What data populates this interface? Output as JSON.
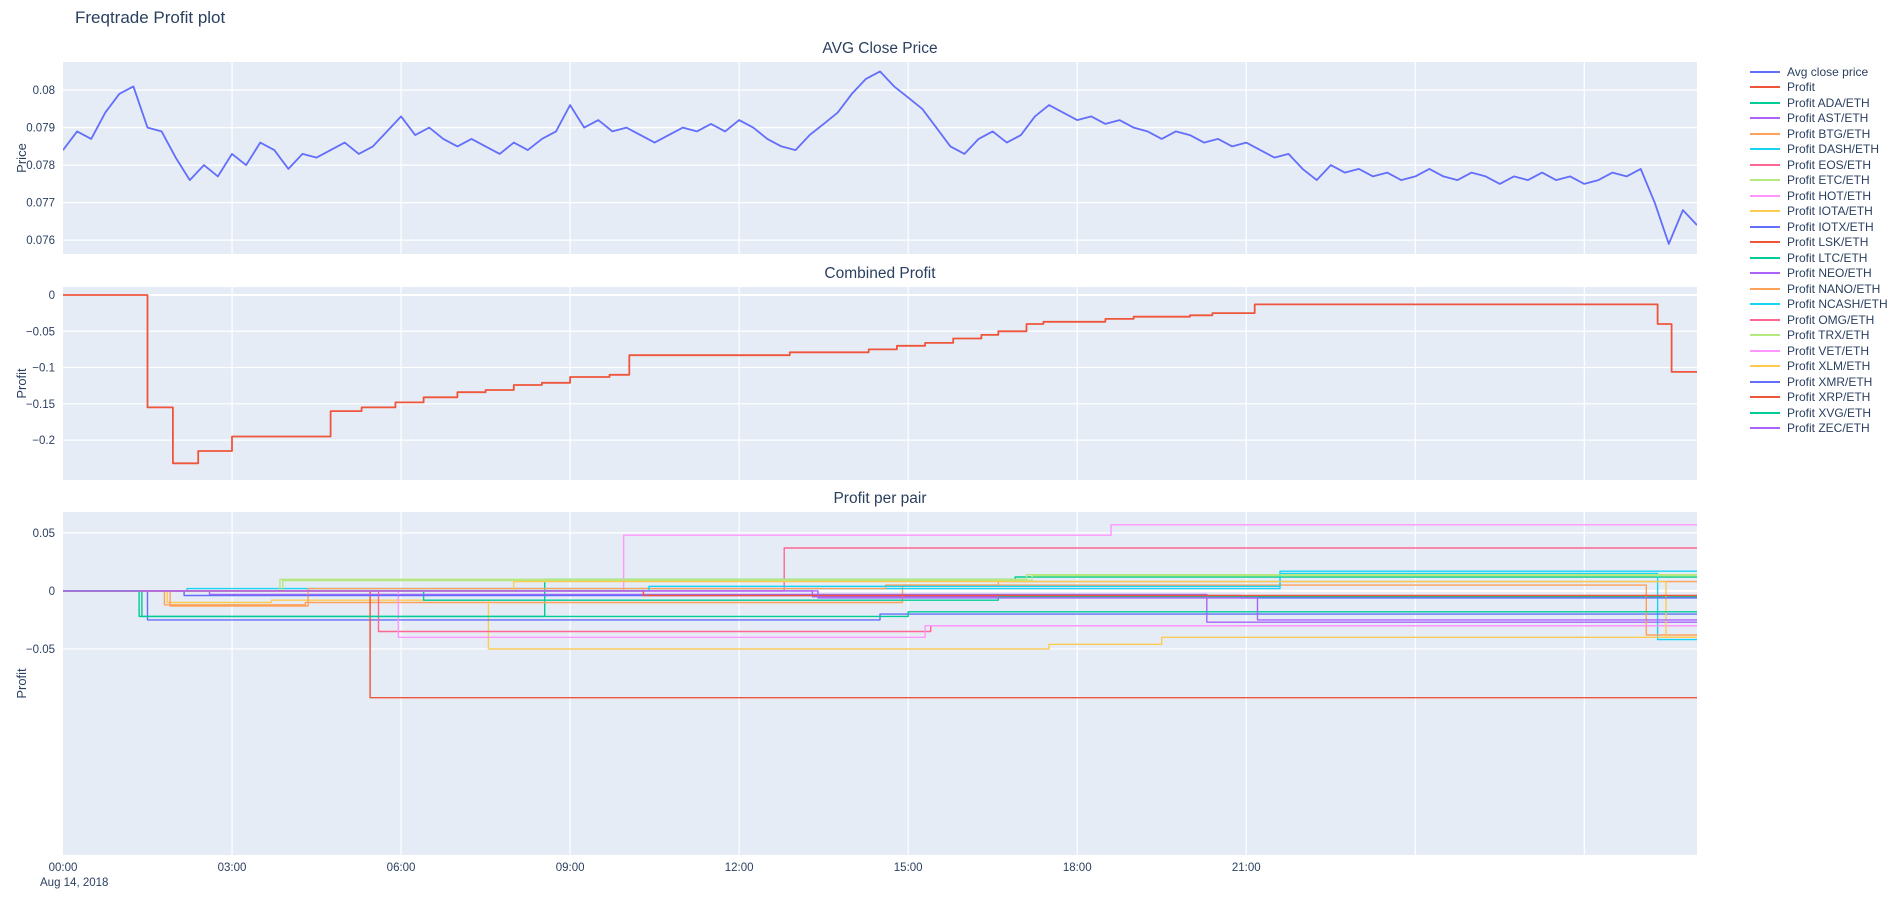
{
  "page": {
    "title": "Freqtrade Profit plot"
  },
  "theme": {
    "paper_bg": "#ffffff",
    "plot_bg": "#e5ecf6",
    "grid": "#ffffff",
    "font_color": "#2a3f5f"
  },
  "x_axis": {
    "range": [
      0,
      29
    ],
    "ticks": [
      {
        "v": 0,
        "label": "00:00"
      },
      {
        "v": 3,
        "label": "03:00"
      },
      {
        "v": 6,
        "label": "06:00"
      },
      {
        "v": 9,
        "label": "09:00"
      },
      {
        "v": 12,
        "label": "12:00"
      },
      {
        "v": 15,
        "label": "15:00"
      },
      {
        "v": 18,
        "label": "18:00"
      },
      {
        "v": 21,
        "label": "21:00"
      }
    ],
    "grid": [
      3,
      6,
      9,
      12,
      15,
      18,
      21,
      24,
      27
    ],
    "date_label": "Aug 14, 2018"
  },
  "chart_data": [
    {
      "type": "line",
      "title": "AVG Close Price",
      "ylabel": "Price",
      "ylim": [
        0.07563,
        0.08075
      ],
      "yticks": [
        {
          "v": 0.08,
          "label": "0.08"
        },
        {
          "v": 0.079,
          "label": "0.079"
        },
        {
          "v": 0.078,
          "label": "0.078"
        },
        {
          "v": 0.077,
          "label": "0.077"
        },
        {
          "v": 0.076,
          "label": "0.076"
        }
      ],
      "series": [
        {
          "name": "Avg close price",
          "color": "#636efa",
          "x_start": 0,
          "x_step": 0.25,
          "y": [
            0.0784,
            0.0789,
            0.0787,
            0.0794,
            0.0799,
            0.0801,
            0.079,
            0.0789,
            0.0782,
            0.0776,
            0.078,
            0.0777,
            0.0783,
            0.078,
            0.0786,
            0.0784,
            0.0779,
            0.0783,
            0.0782,
            0.0784,
            0.0786,
            0.0783,
            0.0785,
            0.0789,
            0.0793,
            0.0788,
            0.079,
            0.0787,
            0.0785,
            0.0787,
            0.0785,
            0.0783,
            0.0786,
            0.0784,
            0.0787,
            0.0789,
            0.0796,
            0.079,
            0.0792,
            0.0789,
            0.079,
            0.0788,
            0.0786,
            0.0788,
            0.079,
            0.0789,
            0.0791,
            0.0789,
            0.0792,
            0.079,
            0.0787,
            0.0785,
            0.0784,
            0.0788,
            0.0791,
            0.0794,
            0.0799,
            0.0803,
            0.0805,
            0.0801,
            0.0798,
            0.0795,
            0.079,
            0.0785,
            0.0783,
            0.0787,
            0.0789,
            0.0786,
            0.0788,
            0.0793,
            0.0796,
            0.0794,
            0.0792,
            0.0793,
            0.0791,
            0.0792,
            0.079,
            0.0789,
            0.0787,
            0.0789,
            0.0788,
            0.0786,
            0.0787,
            0.0785,
            0.0786,
            0.0784,
            0.0782,
            0.0783,
            0.0779,
            0.0776,
            0.078,
            0.0778,
            0.0779,
            0.0777,
            0.0778,
            0.0776,
            0.0777,
            0.0779,
            0.0777,
            0.0776,
            0.0778,
            0.0777,
            0.0775,
            0.0777,
            0.0776,
            0.0778,
            0.0776,
            0.0777,
            0.0775,
            0.0776,
            0.0778,
            0.0777,
            0.0779,
            0.077,
            0.0759,
            0.0768,
            0.0764
          ]
        }
      ]
    },
    {
      "type": "step-line",
      "title": "Combined Profit",
      "ylabel": "Profit",
      "ylim": [
        -0.255,
        0.011
      ],
      "yticks": [
        {
          "v": 0,
          "label": "0"
        },
        {
          "v": -0.05,
          "label": "−0.05"
        },
        {
          "v": -0.1,
          "label": "−0.1"
        },
        {
          "v": -0.15,
          "label": "−0.15"
        },
        {
          "v": -0.2,
          "label": "−0.2"
        }
      ],
      "series": [
        {
          "name": "Profit",
          "color": "#EF553B",
          "steps": [
            [
              0,
              0
            ],
            [
              1.5,
              -0.155
            ],
            [
              1.95,
              -0.232
            ],
            [
              2.4,
              -0.215
            ],
            [
              3.0,
              -0.195
            ],
            [
              4.75,
              -0.16
            ],
            [
              5.3,
              -0.155
            ],
            [
              5.9,
              -0.148
            ],
            [
              6.4,
              -0.141
            ],
            [
              7.0,
              -0.134
            ],
            [
              7.5,
              -0.131
            ],
            [
              8.0,
              -0.124
            ],
            [
              8.5,
              -0.121
            ],
            [
              9.0,
              -0.113
            ],
            [
              9.7,
              -0.11
            ],
            [
              10.05,
              -0.083
            ],
            [
              12.9,
              -0.079
            ],
            [
              14.3,
              -0.075
            ],
            [
              14.8,
              -0.07
            ],
            [
              15.3,
              -0.066
            ],
            [
              15.8,
              -0.06
            ],
            [
              16.3,
              -0.055
            ],
            [
              16.6,
              -0.05
            ],
            [
              17.1,
              -0.04
            ],
            [
              17.4,
              -0.037
            ],
            [
              18.5,
              -0.033
            ],
            [
              19.0,
              -0.03
            ],
            [
              20.0,
              -0.028
            ],
            [
              20.4,
              -0.025
            ],
            [
              21.15,
              -0.013
            ],
            [
              28.3,
              -0.04
            ],
            [
              28.55,
              -0.106
            ]
          ]
        }
      ]
    },
    {
      "type": "step-line",
      "title": "Profit per pair",
      "ylabel": "Profit",
      "ylim": [
        -0.2276,
        0.068
      ],
      "yticks": [
        {
          "v": 0.05,
          "label": "0.05"
        },
        {
          "v": 0,
          "label": "0"
        },
        {
          "v": -0.05,
          "label": "−0.05"
        }
      ],
      "series": [
        {
          "name": "Profit ADA/ETH",
          "color": "#00cc96",
          "steps": [
            [
              0,
              0
            ],
            [
              1.4,
              -0.022
            ],
            [
              8.55,
              0.01
            ],
            [
              16.9,
              0.012
            ]
          ]
        },
        {
          "name": "Profit AST/ETH",
          "color": "#ab63fa",
          "steps": [
            [
              0,
              0
            ],
            [
              13.3,
              -0.005
            ]
          ]
        },
        {
          "name": "Profit BTG/ETH",
          "color": "#FFA15A",
          "steps": [
            [
              0,
              0
            ],
            [
              1.8,
              -0.012
            ],
            [
              4.3,
              -0.01
            ],
            [
              14.9,
              0.005
            ],
            [
              16.6,
              0.008
            ]
          ]
        },
        {
          "name": "Profit DASH/ETH",
          "color": "#19d3f3",
          "steps": [
            [
              0,
              0
            ],
            [
              2.2,
              0.002
            ],
            [
              21.6,
              0.015
            ],
            [
              28.3,
              -0.042
            ]
          ]
        },
        {
          "name": "Profit EOS/ETH",
          "color": "#FF6692",
          "steps": [
            [
              0,
              0
            ],
            [
              12.8,
              0.037
            ]
          ]
        },
        {
          "name": "Profit ETC/ETH",
          "color": "#B6E880",
          "steps": [
            [
              0,
              0
            ],
            [
              3.9,
              0.009
            ],
            [
              17.2,
              0.013
            ]
          ]
        },
        {
          "name": "Profit HOT/ETH",
          "color": "#FF97FF",
          "steps": [
            [
              0,
              0
            ],
            [
              9.95,
              0.048
            ],
            [
              18.6,
              0.057
            ]
          ]
        },
        {
          "name": "Profit IOTA/ETH",
          "color": "#FECB52",
          "steps": [
            [
              0,
              0
            ],
            [
              1.85,
              -0.01
            ],
            [
              3.7,
              -0.008
            ],
            [
              7.55,
              -0.05
            ],
            [
              17.5,
              -0.046
            ],
            [
              19.5,
              -0.04
            ]
          ]
        },
        {
          "name": "Profit IOTX/ETH",
          "color": "#636efa",
          "steps": [
            [
              0,
              0
            ],
            [
              1.5,
              -0.025
            ],
            [
              14.5,
              -0.02
            ]
          ]
        },
        {
          "name": "Profit LSK/ETH",
          "color": "#EF553B",
          "steps": [
            [
              0,
              0
            ],
            [
              5.45,
              -0.092
            ]
          ]
        },
        {
          "name": "Profit LTC/ETH",
          "color": "#00cc96",
          "steps": [
            [
              0,
              0
            ],
            [
              6.4,
              -0.008
            ],
            [
              16.6,
              -0.005
            ]
          ]
        },
        {
          "name": "Profit NEO/ETH",
          "color": "#ab63fa",
          "steps": [
            [
              0,
              0
            ],
            [
              2.6,
              -0.003
            ],
            [
              20.3,
              -0.027
            ]
          ]
        },
        {
          "name": "Profit NANO/ETH",
          "color": "#FFA15A",
          "steps": [
            [
              0,
              0
            ],
            [
              1.9,
              -0.013
            ],
            [
              4.35,
              0.002
            ],
            [
              14.6,
              0.005
            ],
            [
              28.1,
              -0.038
            ]
          ]
        },
        {
          "name": "Profit NCASH/ETH",
          "color": "#19d3f3",
          "steps": [
            [
              0,
              0
            ],
            [
              10.4,
              0.004
            ],
            [
              21.6,
              0.017
            ]
          ]
        },
        {
          "name": "Profit OMG/ETH",
          "color": "#FF6692",
          "steps": [
            [
              0,
              0
            ],
            [
              5.6,
              -0.035
            ],
            [
              15.4,
              -0.03
            ]
          ]
        },
        {
          "name": "Profit TRX/ETH",
          "color": "#B6E880",
          "steps": [
            [
              0,
              0
            ],
            [
              3.85,
              0.01
            ],
            [
              17.1,
              0.014
            ]
          ]
        },
        {
          "name": "Profit VET/ETH",
          "color": "#FF97FF",
          "steps": [
            [
              0,
              0
            ],
            [
              5.95,
              -0.04
            ],
            [
              15.3,
              -0.03
            ]
          ]
        },
        {
          "name": "Profit XLM/ETH",
          "color": "#FECB52",
          "steps": [
            [
              0,
              0
            ],
            [
              8.0,
              0.008
            ],
            [
              28.45,
              -0.04
            ]
          ]
        },
        {
          "name": "Profit XMR/ETH",
          "color": "#636efa",
          "steps": [
            [
              0,
              0
            ],
            [
              2.15,
              -0.004
            ],
            [
              20.9,
              -0.006
            ]
          ]
        },
        {
          "name": "Profit XRP/ETH",
          "color": "#EF553B",
          "steps": [
            [
              0,
              0
            ],
            [
              10.3,
              -0.004
            ]
          ]
        },
        {
          "name": "Profit XVG/ETH",
          "color": "#00cc96",
          "steps": [
            [
              0,
              0
            ],
            [
              1.35,
              -0.022
            ],
            [
              15.0,
              -0.018
            ]
          ]
        },
        {
          "name": "Profit ZEC/ETH",
          "color": "#ab63fa",
          "steps": [
            [
              0,
              0
            ],
            [
              13.4,
              -0.006
            ],
            [
              21.2,
              -0.025
            ]
          ]
        }
      ]
    }
  ],
  "legend": {
    "items": [
      {
        "label": "Avg close price",
        "color": "#636efa"
      },
      {
        "label": "Profit",
        "color": "#EF553B"
      },
      {
        "label": "Profit ADA/ETH",
        "color": "#00cc96"
      },
      {
        "label": "Profit AST/ETH",
        "color": "#ab63fa"
      },
      {
        "label": "Profit BTG/ETH",
        "color": "#FFA15A"
      },
      {
        "label": "Profit DASH/ETH",
        "color": "#19d3f3"
      },
      {
        "label": "Profit EOS/ETH",
        "color": "#FF6692"
      },
      {
        "label": "Profit ETC/ETH",
        "color": "#B6E880"
      },
      {
        "label": "Profit HOT/ETH",
        "color": "#FF97FF"
      },
      {
        "label": "Profit IOTA/ETH",
        "color": "#FECB52"
      },
      {
        "label": "Profit IOTX/ETH",
        "color": "#636efa"
      },
      {
        "label": "Profit LSK/ETH",
        "color": "#EF553B"
      },
      {
        "label": "Profit LTC/ETH",
        "color": "#00cc96"
      },
      {
        "label": "Profit NEO/ETH",
        "color": "#ab63fa"
      },
      {
        "label": "Profit NANO/ETH",
        "color": "#FFA15A"
      },
      {
        "label": "Profit NCASH/ETH",
        "color": "#19d3f3"
      },
      {
        "label": "Profit OMG/ETH",
        "color": "#FF6692"
      },
      {
        "label": "Profit TRX/ETH",
        "color": "#B6E880"
      },
      {
        "label": "Profit VET/ETH",
        "color": "#FF97FF"
      },
      {
        "label": "Profit XLM/ETH",
        "color": "#FECB52"
      },
      {
        "label": "Profit XMR/ETH",
        "color": "#636efa"
      },
      {
        "label": "Profit XRP/ETH",
        "color": "#EF553B"
      },
      {
        "label": "Profit XVG/ETH",
        "color": "#00cc96"
      },
      {
        "label": "Profit ZEC/ETH",
        "color": "#ab63fa"
      }
    ]
  }
}
